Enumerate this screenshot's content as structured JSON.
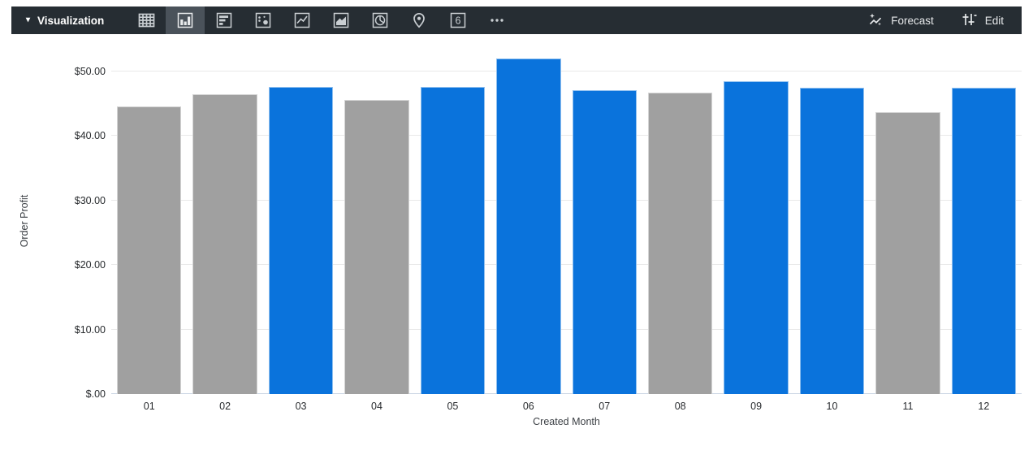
{
  "toolbar": {
    "label": "Visualization",
    "single_value_glyph": "6",
    "chart_type_icons": [
      "table",
      "column",
      "bar",
      "scatter",
      "line",
      "area",
      "pie",
      "map",
      "single-value",
      "more"
    ],
    "selected_chart_type": "column",
    "forecast_label": "Forecast",
    "edit_label": "Edit"
  },
  "colors": {
    "toolbar_bg": "#262d33",
    "toolbar_selected_bg": "#4a525a",
    "icon_stroke": "#c9ced2",
    "bar_blue": "#0a73dc",
    "bar_gray": "#a0a0a0",
    "gridline": "#e9e9e9",
    "baseline": "#c9d4e2"
  },
  "chart_data": {
    "type": "bar",
    "title": "",
    "xlabel": "Created Month",
    "ylabel": "Order Profit",
    "categories": [
      "01",
      "02",
      "03",
      "04",
      "05",
      "06",
      "07",
      "08",
      "09",
      "10",
      "11",
      "12"
    ],
    "values": [
      44.6,
      46.4,
      47.6,
      45.6,
      47.6,
      52.0,
      47.1,
      46.7,
      48.5,
      47.4,
      43.7,
      47.4
    ],
    "bar_colors": [
      "#a0a0a0",
      "#a0a0a0",
      "#0a73dc",
      "#a0a0a0",
      "#0a73dc",
      "#0a73dc",
      "#0a73dc",
      "#a0a0a0",
      "#0a73dc",
      "#0a73dc",
      "#a0a0a0",
      "#0a73dc"
    ],
    "yticks": [
      {
        "value": 0,
        "label": "$.00"
      },
      {
        "value": 10,
        "label": "$10.00"
      },
      {
        "value": 20,
        "label": "$20.00"
      },
      {
        "value": 30,
        "label": "$30.00"
      },
      {
        "value": 40,
        "label": "$40.00"
      },
      {
        "value": 50,
        "label": "$50.00"
      }
    ],
    "ylim": [
      0,
      53.5
    ],
    "grid": true,
    "legend": false
  }
}
